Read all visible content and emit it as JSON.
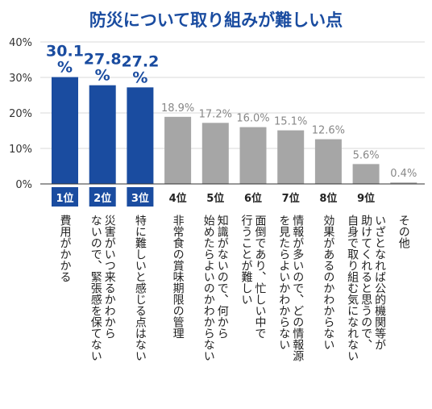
{
  "chart_data": {
    "type": "bar",
    "title": "防災について取り組みが難しい点",
    "ylim": [
      0,
      40
    ],
    "yticks": [
      "0%",
      "10%",
      "20%",
      "30%",
      "40%"
    ],
    "grid": true,
    "categories": [
      "1位",
      "2位",
      "3位",
      "4位",
      "5位",
      "6位",
      "7位",
      "8位",
      "9位",
      ""
    ],
    "values": [
      30.1,
      27.8,
      27.2,
      18.9,
      17.2,
      16.0,
      15.1,
      12.6,
      5.6,
      0.4
    ],
    "value_labels": [
      "30.1%",
      "27.8%",
      "27.2%",
      "18.9%",
      "17.2%",
      "16.0%",
      "15.1%",
      "12.6%",
      "5.6%",
      "0.4%"
    ],
    "descriptions": [
      [
        "費用がかかる"
      ],
      [
        "災害がいつ来るかわから",
        "ないので、緊張感を保てない"
      ],
      [
        "特に難しいと感じる点はない"
      ],
      [
        "非常食の賞味期限の管理"
      ],
      [
        "知識がないので、何から",
        "始めたらよいのかわからない"
      ],
      [
        "面倒であり、忙しい中で",
        "行うことが難しい"
      ],
      [
        "情報が多いので、どの情報源",
        "を見たらよいかわからない"
      ],
      [
        "効果があるのかわからない"
      ],
      [
        "いざとなれば公的機関等が",
        "助けてくれると思うので、",
        "自身で取り組む気になれない"
      ],
      [
        "その他"
      ]
    ],
    "colors": {
      "highlight": "#1a4ca0",
      "normal": "#a6a6a6",
      "axis": "#333333",
      "grid": "#d9d9d9",
      "title": "#1a4ca0"
    }
  }
}
